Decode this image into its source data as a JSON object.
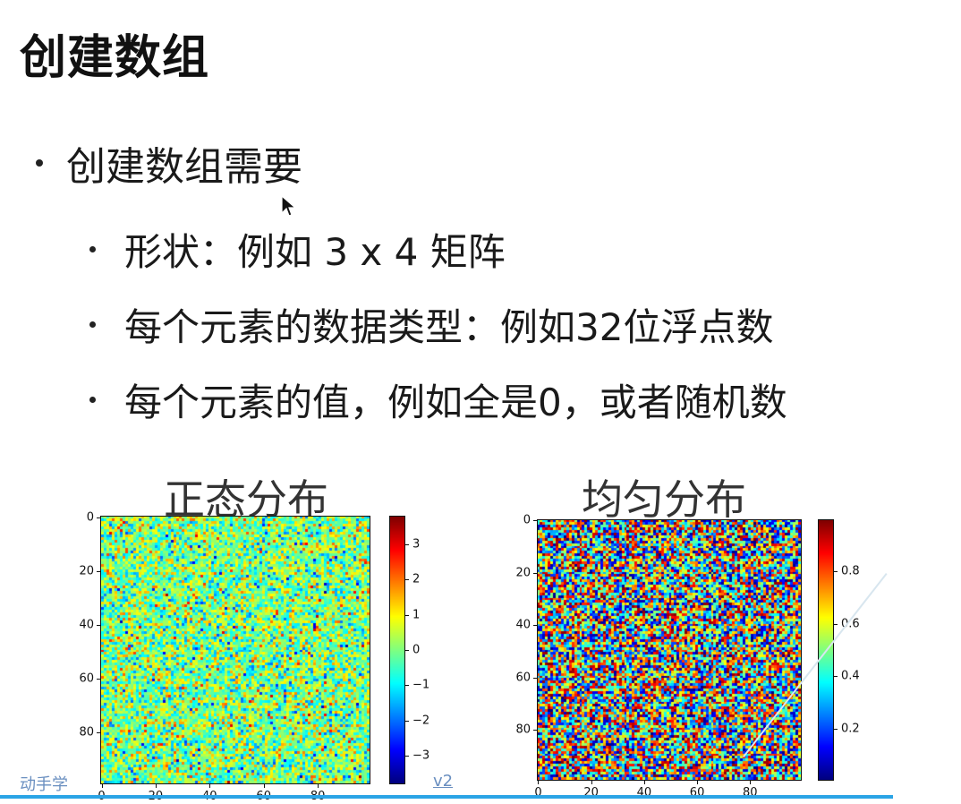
{
  "slide": {
    "title": "创建数组",
    "bullet_main": "创建数组需要",
    "sub_bullets": [
      "形状：例如 3 x 4 矩阵",
      "每个元素的数据类型：例如32位浮点数",
      "每个元素的值，例如全是0，或者随机数"
    ],
    "footer_left": "动手学",
    "footer_right": "v2",
    "accent_color": "#2aa4e6",
    "cursor_icon": "mouse-pointer-icon"
  },
  "chart_data": [
    {
      "type": "heatmap",
      "title": "正态分布",
      "distribution": "normal",
      "colormap": "jet",
      "grid_size": [
        100,
        100
      ],
      "x_ticks": [
        "0",
        "20",
        "40",
        "60",
        "80"
      ],
      "y_ticks": [
        "0",
        "20",
        "40",
        "60",
        "80"
      ],
      "colorbar_ticks": [
        "3",
        "2",
        "1",
        "0",
        "−1",
        "−2",
        "−3"
      ],
      "colorbar_range": [
        -3.8,
        3.8
      ]
    },
    {
      "type": "heatmap",
      "title": "均匀分布",
      "distribution": "uniform",
      "colormap": "jet",
      "grid_size": [
        100,
        100
      ],
      "x_ticks": [
        "0",
        "20",
        "40",
        "60",
        "80"
      ],
      "y_ticks": [
        "0",
        "20",
        "40",
        "60",
        "80"
      ],
      "colorbar_ticks": [
        "0.8",
        "0.6",
        "0.4",
        "0.2"
      ],
      "colorbar_range": [
        0.0,
        1.0
      ]
    }
  ]
}
